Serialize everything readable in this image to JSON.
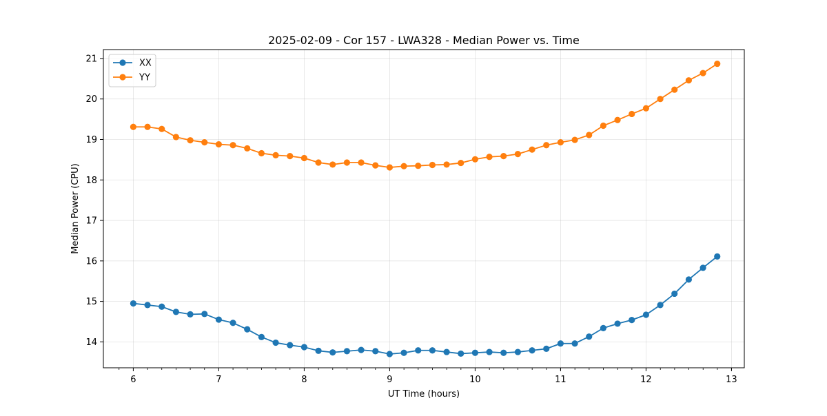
{
  "chart_data": {
    "type": "line",
    "title": "2025-02-09 - Cor 157 - LWA328 - Median Power vs. Time",
    "xlabel": "UT Time (hours)",
    "ylabel": "Median Power (CPU)",
    "xlim": [
      5.65,
      13.15
    ],
    "ylim": [
      13.36,
      21.22
    ],
    "xticks": [
      6,
      7,
      8,
      9,
      10,
      11,
      12,
      13
    ],
    "xticks_minor_step": 0.1667,
    "yticks": [
      14,
      15,
      16,
      17,
      18,
      19,
      20,
      21
    ],
    "grid": true,
    "legend_position": "upper-left",
    "x": [
      6.0,
      6.1667,
      6.3333,
      6.5,
      6.6667,
      6.8333,
      7.0,
      7.1667,
      7.3333,
      7.5,
      7.6667,
      7.8333,
      8.0,
      8.1667,
      8.3333,
      8.5,
      8.6667,
      8.8333,
      9.0,
      9.1667,
      9.3333,
      9.5,
      9.6667,
      9.8333,
      10.0,
      10.1667,
      10.3333,
      10.5,
      10.6667,
      10.8333,
      11.0,
      11.1667,
      11.3333,
      11.5,
      11.6667,
      11.8333,
      12.0,
      12.1667,
      12.3333,
      12.5,
      12.6667,
      12.8333
    ],
    "series": [
      {
        "name": "XX",
        "color": "#1f77b4",
        "values": [
          14.95,
          14.91,
          14.87,
          14.74,
          14.68,
          14.69,
          14.55,
          14.47,
          14.31,
          14.12,
          13.98,
          13.92,
          13.87,
          13.78,
          13.74,
          13.77,
          13.8,
          13.77,
          13.7,
          13.73,
          13.79,
          13.79,
          13.75,
          13.71,
          13.73,
          13.75,
          13.73,
          13.75,
          13.79,
          13.83,
          13.96,
          13.96,
          14.13,
          14.34,
          14.45,
          14.54,
          14.67,
          14.91,
          15.19,
          15.54,
          15.83,
          16.11
        ]
      },
      {
        "name": "YY",
        "color": "#ff7f0e",
        "values": [
          19.31,
          19.31,
          19.26,
          19.06,
          18.98,
          18.93,
          18.88,
          18.86,
          18.78,
          18.66,
          18.61,
          18.59,
          18.54,
          18.43,
          18.38,
          18.43,
          18.43,
          18.36,
          18.31,
          18.34,
          18.35,
          18.37,
          18.38,
          18.42,
          18.51,
          18.57,
          18.59,
          18.64,
          18.75,
          18.86,
          18.93,
          18.99,
          19.11,
          19.34,
          19.48,
          19.63,
          19.77,
          20.0,
          20.23,
          20.46,
          20.64,
          20.87
        ]
      }
    ]
  }
}
